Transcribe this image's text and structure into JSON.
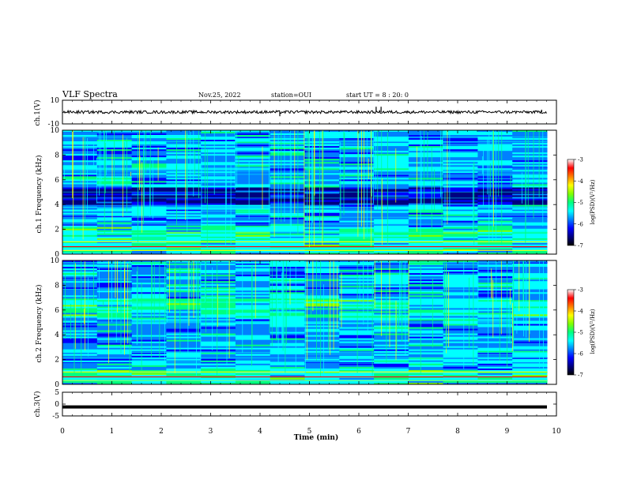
{
  "header": {
    "title": "VLF Spectra",
    "date": "Nov.25, 2022",
    "station": "station=OUI",
    "start_time": "start UT =  8 : 20: 0"
  },
  "colors": {
    "spectrogram_palette": [
      "#000080",
      "#0000ff",
      "#0080ff",
      "#00ffff",
      "#00ff80",
      "#80ff00",
      "#ffff00",
      "#ff8000",
      "#ff0000",
      "#ffffff"
    ]
  },
  "chart_data": [
    {
      "type": "line",
      "name": "ch1-waveform",
      "ylabel": "ch.1(V)",
      "ylim": [
        -10,
        10
      ],
      "yticks": [
        "10",
        "-10"
      ],
      "xlim": [
        0,
        10
      ],
      "baseline": 0,
      "spikes": [
        {
          "x": 4.4,
          "y": -3.5
        },
        {
          "x": 6.35,
          "y": 4.5
        },
        {
          "x": 6.45,
          "y": 4.5
        },
        {
          "x": 9.7,
          "y": 2.0
        }
      ]
    },
    {
      "type": "heatmap",
      "name": "ch1-spectrogram",
      "ylabel": "ch.1 Frequency (kHz)",
      "ylim": [
        0,
        10
      ],
      "yticks": [
        "0",
        "2",
        "4",
        "6",
        "8",
        "10"
      ],
      "xlim": [
        0,
        10
      ],
      "colorbar": {
        "label": "log(PSD)(V²/Hz)",
        "range": [
          -7,
          -3
        ],
        "ticks": [
          "-3",
          "-4",
          "-5",
          "-6",
          "-7"
        ]
      }
    },
    {
      "type": "heatmap",
      "name": "ch2-spectrogram",
      "ylabel": "ch.2 Frequency (kHz)",
      "ylim": [
        0,
        10
      ],
      "yticks": [
        "0",
        "2",
        "4",
        "6",
        "8",
        "10"
      ],
      "xlim": [
        0,
        10
      ],
      "colorbar": {
        "label": "log(PSD)(V²/Hz)",
        "range": [
          -7,
          -3
        ],
        "ticks": [
          "-3",
          "-4",
          "-5",
          "-6",
          "-7"
        ]
      }
    },
    {
      "type": "line",
      "name": "ch3-waveform",
      "ylabel": "ch.3(V)",
      "ylim": [
        -5,
        5
      ],
      "yticks": [
        "5",
        "0",
        "-5"
      ],
      "xlim": [
        0,
        10
      ],
      "xticks": [
        "0",
        "1",
        "2",
        "3",
        "4",
        "5",
        "6",
        "7",
        "8",
        "9",
        "10"
      ],
      "xlabel": "Time (min)",
      "level": -1.2
    }
  ]
}
